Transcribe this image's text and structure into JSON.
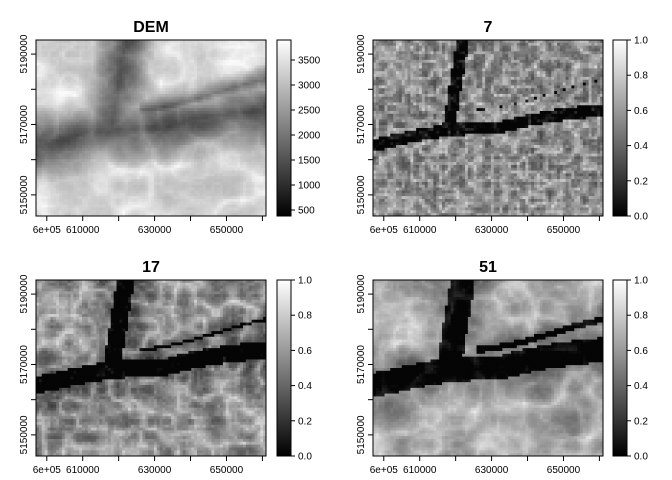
{
  "chart_data": [
    {
      "type": "heatmap",
      "title": "DEM",
      "colormap": "grayscale",
      "x_ticks": [
        "6e+05",
        "610000",
        "630000",
        "650000"
      ],
      "x_tick_values": [
        600000,
        610000,
        630000,
        650000
      ],
      "y_ticks": [
        "5150000",
        "5170000",
        "5190000"
      ],
      "y_tick_values": [
        5150000,
        5170000,
        5190000
      ],
      "xlim": [
        597000,
        661000
      ],
      "ylim": [
        5144000,
        5194000
      ],
      "colorbar_ticks": [
        "500",
        "1000",
        "1500",
        "2000",
        "2500",
        "3000",
        "3500"
      ],
      "colorbar_values": [
        500,
        1000,
        1500,
        2000,
        2500,
        3000,
        3500
      ],
      "colorbar_range": [
        380,
        3900
      ]
    },
    {
      "type": "heatmap",
      "title": "7",
      "colormap": "grayscale",
      "x_ticks": [
        "6e+05",
        "610000",
        "630000",
        "650000"
      ],
      "x_tick_values": [
        600000,
        610000,
        630000,
        650000
      ],
      "y_ticks": [
        "5150000",
        "5170000",
        "5190000"
      ],
      "y_tick_values": [
        5150000,
        5170000,
        5190000
      ],
      "xlim": [
        597000,
        661000
      ],
      "ylim": [
        5144000,
        5194000
      ],
      "colorbar_ticks": [
        "0.0",
        "0.2",
        "0.4",
        "0.6",
        "0.8",
        "1.0"
      ],
      "colorbar_values": [
        0,
        0.2,
        0.4,
        0.6,
        0.8,
        1.0
      ],
      "colorbar_range": [
        0,
        1
      ]
    },
    {
      "type": "heatmap",
      "title": "17",
      "colormap": "grayscale",
      "x_ticks": [
        "6e+05",
        "610000",
        "630000",
        "650000"
      ],
      "x_tick_values": [
        600000,
        610000,
        630000,
        650000
      ],
      "y_ticks": [
        "5150000",
        "5170000",
        "5190000"
      ],
      "y_tick_values": [
        5150000,
        5170000,
        5190000
      ],
      "xlim": [
        597000,
        661000
      ],
      "ylim": [
        5144000,
        5194000
      ],
      "colorbar_ticks": [
        "0.0",
        "0.2",
        "0.4",
        "0.6",
        "0.8",
        "1.0"
      ],
      "colorbar_values": [
        0,
        0.2,
        0.4,
        0.6,
        0.8,
        1.0
      ],
      "colorbar_range": [
        0,
        1
      ]
    },
    {
      "type": "heatmap",
      "title": "51",
      "colormap": "grayscale",
      "x_ticks": [
        "6e+05",
        "610000",
        "630000",
        "650000"
      ],
      "x_tick_values": [
        600000,
        610000,
        630000,
        650000
      ],
      "y_ticks": [
        "5150000",
        "5170000",
        "5190000"
      ],
      "y_tick_values": [
        5150000,
        5170000,
        5190000
      ],
      "xlim": [
        597000,
        661000
      ],
      "ylim": [
        5144000,
        5194000
      ],
      "colorbar_ticks": [
        "0.0",
        "0.2",
        "0.4",
        "0.6",
        "0.8",
        "1.0"
      ],
      "colorbar_values": [
        0,
        0.2,
        0.4,
        0.6,
        0.8,
        1.0
      ],
      "colorbar_range": [
        0,
        1
      ]
    }
  ]
}
